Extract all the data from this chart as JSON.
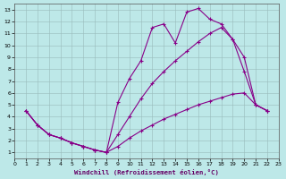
{
  "background_color": "#bde8e8",
  "line_color": "#880088",
  "grid_color": "#99bbbb",
  "xlabel": "Windchill (Refroidissement éolien,°C)",
  "xlim": [
    0,
    23
  ],
  "ylim": [
    0.5,
    13.5
  ],
  "xticks": [
    0,
    1,
    2,
    3,
    4,
    5,
    6,
    7,
    8,
    9,
    10,
    11,
    12,
    13,
    14,
    15,
    16,
    17,
    18,
    19,
    20,
    21,
    22,
    23
  ],
  "yticks": [
    1,
    2,
    3,
    4,
    5,
    6,
    7,
    8,
    9,
    10,
    11,
    12,
    13
  ],
  "curve1_x": [
    1,
    2,
    3,
    4,
    5,
    6,
    7,
    8,
    9,
    10,
    11,
    12,
    13,
    14,
    15,
    16,
    17,
    18,
    19,
    20,
    21,
    22
  ],
  "curve1_y": [
    4.5,
    3.3,
    2.5,
    2.2,
    1.8,
    1.5,
    1.2,
    1.0,
    5.2,
    7.2,
    8.7,
    11.5,
    11.8,
    10.2,
    12.8,
    13.1,
    12.2,
    11.8,
    10.5,
    9.0,
    5.0,
    4.5
  ],
  "curve2_x": [
    1,
    2,
    3,
    4,
    5,
    6,
    7,
    8,
    9,
    10,
    11,
    12,
    13,
    14,
    15,
    16,
    17,
    18,
    19,
    20,
    21,
    22
  ],
  "curve2_y": [
    4.5,
    3.3,
    2.5,
    2.2,
    1.8,
    1.5,
    1.2,
    1.0,
    2.5,
    4.0,
    5.5,
    6.8,
    7.8,
    8.7,
    9.5,
    10.3,
    11.0,
    11.5,
    10.5,
    7.8,
    5.0,
    4.5
  ],
  "curve3_x": [
    1,
    2,
    3,
    4,
    5,
    6,
    7,
    8,
    9,
    10,
    11,
    12,
    13,
    14,
    15,
    16,
    17,
    18,
    19,
    20,
    21,
    22
  ],
  "curve3_y": [
    4.5,
    3.3,
    2.5,
    2.2,
    1.8,
    1.5,
    1.2,
    1.0,
    1.5,
    2.2,
    2.8,
    3.3,
    3.8,
    4.2,
    4.6,
    5.0,
    5.3,
    5.6,
    5.9,
    6.0,
    5.0,
    4.5
  ]
}
